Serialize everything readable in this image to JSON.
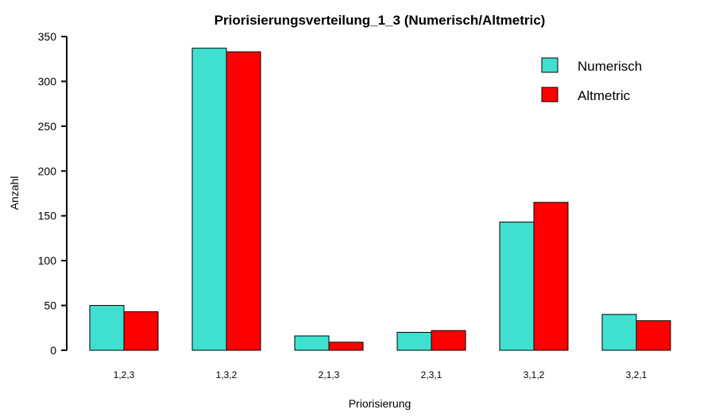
{
  "chart_data": {
    "type": "bar",
    "title": "Priorisierungsverteilung_1_3 (Numerisch/Altmetric)",
    "xlabel": "Priorisierung",
    "ylabel": "Anzahl",
    "categories": [
      "1,2,3",
      "1,3,2",
      "2,1,3",
      "2,3,1",
      "3,1,2",
      "3,2,1"
    ],
    "series": [
      {
        "name": "Numerisch",
        "color": "#40e0d0",
        "values": [
          50,
          337,
          16,
          20,
          143,
          40
        ]
      },
      {
        "name": "Altmetric",
        "color": "#ff0000",
        "values": [
          43,
          333,
          9,
          22,
          165,
          33
        ]
      }
    ],
    "ylim": [
      0,
      350
    ],
    "yticks": [
      0,
      50,
      100,
      150,
      200,
      250,
      300,
      350
    ],
    "grid": false,
    "legend_position": "top-right"
  }
}
